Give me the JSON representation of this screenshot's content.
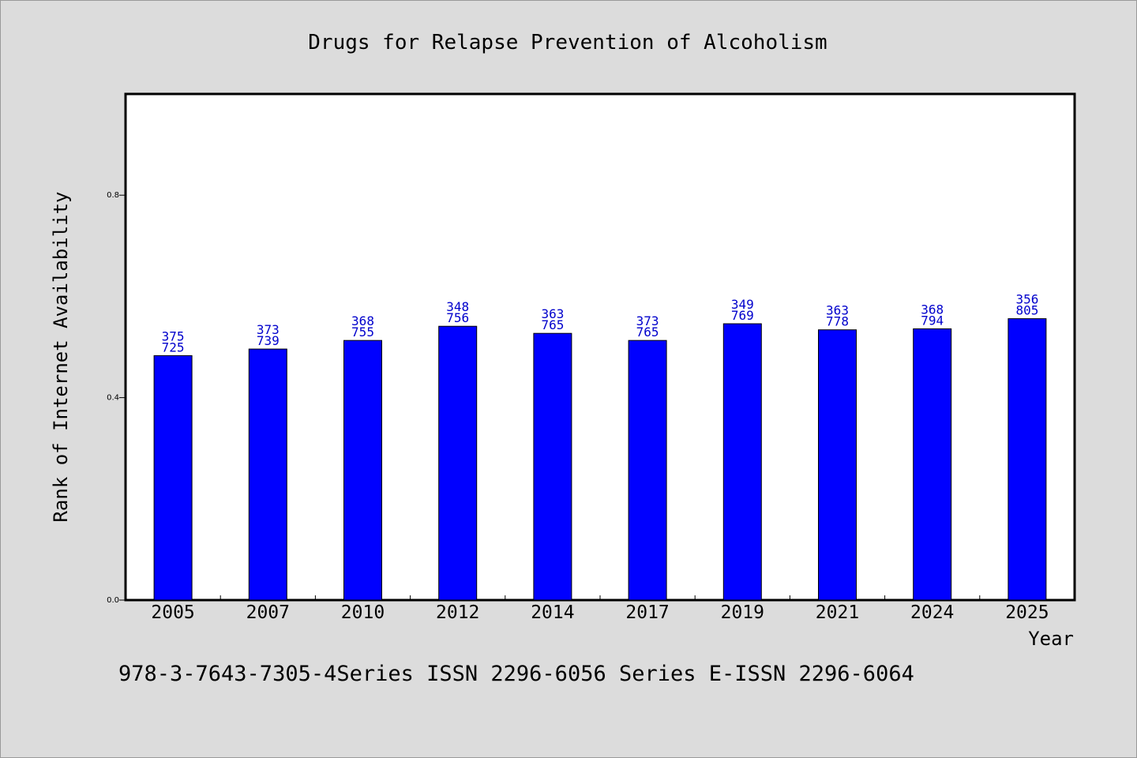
{
  "chart_data": {
    "type": "bar",
    "title": "Drugs for Relapse Prevention of Alcoholism",
    "xlabel": "Year",
    "ylabel": "Rank of Internet Availability",
    "categories": [
      "2005",
      "2007",
      "2010",
      "2012",
      "2014",
      "2017",
      "2019",
      "2021",
      "2024",
      "2025"
    ],
    "values": [
      0.483,
      0.496,
      0.513,
      0.541,
      0.527,
      0.513,
      0.546,
      0.534,
      0.536,
      0.556
    ],
    "data_labels": [
      [
        "375",
        "725"
      ],
      [
        "373",
        "739"
      ],
      [
        "368",
        "755"
      ],
      [
        "348",
        "756"
      ],
      [
        "363",
        "765"
      ],
      [
        "373",
        "765"
      ],
      [
        "349",
        "769"
      ],
      [
        "363",
        "778"
      ],
      [
        "368",
        "794"
      ],
      [
        "356",
        "805"
      ]
    ],
    "yticks": [
      "0.0",
      "0.4",
      "0.8"
    ],
    "ytick_values": [
      0.0,
      0.4,
      0.8
    ],
    "ylim": [
      0,
      1.0
    ],
    "grid": false,
    "bar_color": "#0000ff",
    "label_color": "#0000cc"
  },
  "footer": "978-3-7643-7305-4Series ISSN 2296-6056 Series E-ISSN 2296-6064"
}
